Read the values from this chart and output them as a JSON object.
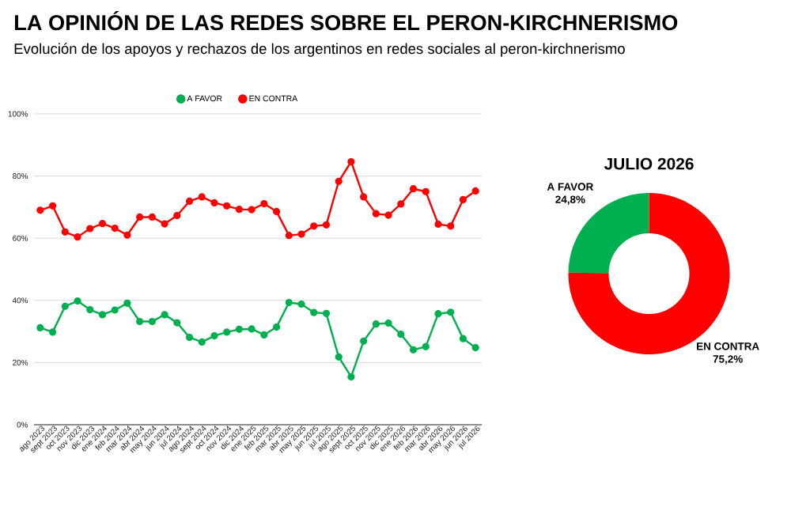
{
  "chart_data": [
    {
      "type": "line",
      "title": "LA OPINIÓN DE LAS REDES SOBRE EL PERON-KIRCHNERISMO",
      "subtitle": "Evolución de los apoyos y rechazos de los argentinos en redes sociales al peron-kirchnerismo",
      "categories": [
        "ago 2023",
        "sept 2023",
        "oct 2023",
        "nov 2023",
        "dic 2023",
        "ene 2024",
        "feb 2024",
        "mar 2024",
        "abr 2024",
        "may 2024",
        "jun 2024",
        "jul 2024",
        "ago 2024",
        "sept 2024",
        "oct 2024",
        "nov 2024",
        "dic 2024",
        "ene 2025",
        "feb 2025",
        "mar 2025",
        "abr 2025",
        "may 2025",
        "jun 2025",
        "jul 2025",
        "ago 2025",
        "sept 2025",
        "oct 2025",
        "nov 2025",
        "dic 2025",
        "ene 2026",
        "feb 2026",
        "mar 2026",
        "abr 2026",
        "may 2026",
        "jun 2026",
        "jul 2026"
      ],
      "series": [
        {
          "name": "A FAVOR",
          "color": "#00b050",
          "values": [
            31.2,
            29.8,
            38.1,
            39.8,
            37.0,
            35.4,
            36.9,
            39.1,
            33.2,
            33.2,
            35.4,
            32.8,
            28.1,
            26.6,
            28.6,
            29.8,
            30.7,
            30.8,
            28.9,
            31.4,
            39.3,
            38.8,
            36.1,
            35.8,
            21.8,
            15.4,
            26.9,
            32.4,
            32.7,
            29.1,
            24.1,
            25.1,
            35.7,
            36.2,
            27.7,
            24.8
          ]
        },
        {
          "name": "EN CONTRA",
          "color": "#ff0000",
          "values": [
            69.0,
            70.4,
            62.0,
            60.4,
            63.1,
            64.7,
            63.2,
            61.0,
            66.8,
            66.8,
            64.6,
            67.3,
            71.9,
            73.3,
            71.4,
            70.4,
            69.3,
            69.2,
            71.1,
            68.6,
            60.9,
            61.3,
            63.9,
            64.3,
            78.3,
            84.6,
            73.3,
            67.9,
            67.4,
            71.0,
            75.9,
            75.0,
            64.5,
            63.9,
            72.4,
            75.2
          ]
        }
      ],
      "ylim": [
        0,
        100
      ],
      "yticks": [
        {
          "value": 0,
          "label": "0%"
        },
        {
          "value": 20,
          "label": "20%"
        },
        {
          "value": 40,
          "label": "40%"
        },
        {
          "value": 60,
          "label": "60%"
        },
        {
          "value": 80,
          "label": "80%"
        },
        {
          "value": 100,
          "label": "100%"
        }
      ],
      "grid": "y",
      "legend": "top",
      "marker": "circle"
    },
    {
      "type": "donut",
      "title": "JULIO 2026",
      "categories": [
        "A FAVOR",
        "EN CONTRA"
      ],
      "values": [
        24.8,
        75.2
      ],
      "colors": [
        "#00b050",
        "#ff0000"
      ],
      "value_labels": [
        "24,8%",
        "75,2%"
      ]
    }
  ]
}
